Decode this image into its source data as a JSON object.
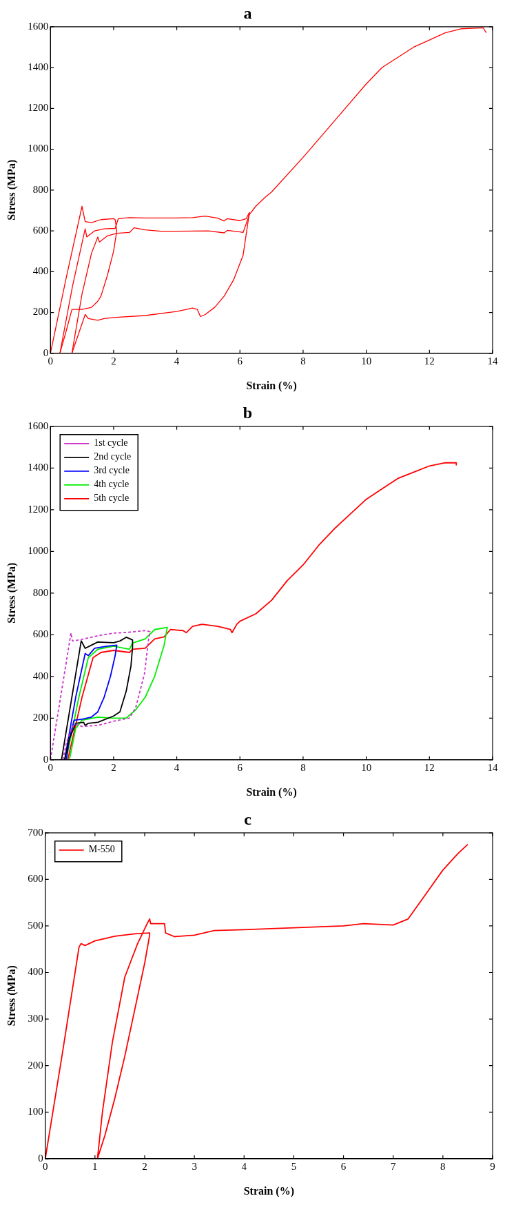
{
  "chart_data": [
    {
      "type": "line",
      "title": "a",
      "xlabel": "Strain (%)",
      "ylabel": "Stress (MPa)",
      "xlim": [
        0,
        14
      ],
      "ylim": [
        0,
        1600
      ],
      "xticks": [
        0,
        2,
        4,
        6,
        8,
        10,
        12,
        14
      ],
      "yticks": [
        0,
        200,
        400,
        600,
        800,
        1000,
        1200,
        1400,
        1600
      ],
      "legend": false,
      "marker": "none",
      "line_style": "solid",
      "series": [
        {
          "color": "#ff0000",
          "x": [
            0,
            0.5,
            1.0,
            1.1,
            1.3,
            1.6,
            2.0,
            2.05,
            2.1,
            2.0,
            1.8,
            1.6,
            1.5,
            1.3,
            1.0,
            0.68,
            0.5,
            0.3
          ],
          "values": [
            0,
            370,
            720,
            645,
            640,
            655,
            660,
            655,
            600,
            500,
            380,
            280,
            255,
            225,
            215,
            215,
            110,
            0
          ]
        },
        {
          "color": "#ff0000",
          "x": [
            0.3,
            0.7,
            1.1,
            1.15,
            1.4,
            1.7,
            2.05,
            2.15,
            2.5,
            3,
            4,
            4.5,
            4.9,
            5.3,
            5.5,
            5.6,
            6.0,
            6.2,
            6.3,
            6.1,
            5.8,
            5.5,
            5.2,
            4.9,
            4.75,
            4.65,
            4.5,
            4,
            3,
            2,
            1.7,
            1.5,
            1.2,
            1.1,
            0.9,
            0.68
          ],
          "values": [
            0,
            330,
            610,
            570,
            600,
            610,
            612,
            660,
            665,
            663,
            663,
            665,
            672,
            662,
            648,
            660,
            650,
            660,
            690,
            480,
            360,
            280,
            225,
            190,
            180,
            215,
            222,
            205,
            185,
            175,
            170,
            162,
            170,
            190,
            100,
            0
          ]
        },
        {
          "color": "#ff0000",
          "x": [
            0.68,
            1.0,
            1.3,
            1.5,
            1.55,
            1.8,
            2.1,
            2.5,
            2.65,
            3,
            3.5,
            4,
            5,
            5.5,
            5.6,
            6.0,
            6.1,
            6.3,
            6.5,
            6.8,
            7,
            8,
            9,
            10,
            10.5,
            11,
            11.5,
            12,
            12.5,
            13,
            13.7,
            13.8
          ],
          "values": [
            0,
            290,
            490,
            570,
            545,
            575,
            588,
            592,
            615,
            605,
            598,
            598,
            600,
            590,
            602,
            595,
            592,
            680,
            720,
            765,
            790,
            960,
            1140,
            1320,
            1400,
            1450,
            1500,
            1535,
            1570,
            1590,
            1595,
            1570
          ]
        }
      ]
    },
    {
      "type": "line",
      "title": "b",
      "xlabel": "Strain (%)",
      "ylabel": "Stress (MPa)",
      "xlim": [
        0,
        14
      ],
      "ylim": [
        0,
        1600
      ],
      "xticks": [
        0,
        2,
        4,
        6,
        8,
        10,
        12,
        14
      ],
      "yticks": [
        0,
        200,
        400,
        600,
        800,
        1000,
        1200,
        1400,
        1600
      ],
      "legend": "top left",
      "marker": "none",
      "series": [
        {
          "name": "1st cycle",
          "color": "#cc33cc",
          "line_style": "dashed",
          "x": [
            0,
            0.65,
            0.7,
            1.0,
            1.5,
            2,
            2.5,
            3.0,
            3.15,
            3.1,
            2.98,
            2.7,
            2.5,
            2.0,
            1.5,
            1.0,
            0.8,
            0.7,
            0.5,
            0.4
          ],
          "values": [
            0,
            608,
            570,
            578,
            595,
            608,
            612,
            620,
            615,
            570,
            414,
            250,
            200,
            185,
            165,
            160,
            170,
            160,
            80,
            0
          ]
        },
        {
          "name": "2nd cycle",
          "color": "#000000",
          "line_style": "solid",
          "x": [
            0.35,
            0.975,
            1.1,
            1.3,
            1.5,
            2.0,
            2.2,
            2.4,
            2.6,
            2.6,
            2.55,
            2.4,
            2.2,
            2.0,
            1.5,
            1.2,
            1.1,
            1.05,
            0.8,
            0.6,
            0.45
          ],
          "values": [
            0,
            571,
            535,
            550,
            565,
            562,
            570,
            588,
            575,
            540,
            450,
            330,
            230,
            210,
            180,
            175,
            165,
            180,
            175,
            100,
            0
          ]
        },
        {
          "name": "3rd cycle",
          "color": "#0000ff",
          "line_style": "solid",
          "x": [
            0.45,
            0.8,
            1.1,
            1.2,
            1.4,
            1.8,
            2.1,
            2.05,
            1.9,
            1.7,
            1.5,
            1.3,
            1.0,
            0.75,
            0.6,
            0.5
          ],
          "values": [
            0,
            300,
            510,
            500,
            535,
            545,
            550,
            500,
            400,
            300,
            230,
            205,
            195,
            190,
            100,
            0
          ]
        },
        {
          "name": "4th cycle",
          "color": "#00ee00",
          "line_style": "solid",
          "x": [
            0.5,
            0.9,
            1.2,
            1.5,
            2.0,
            2.5,
            2.6,
            3.0,
            3.3,
            3.7,
            3.6,
            3.3,
            3.0,
            2.7,
            2.4,
            2.0,
            1.5,
            1.0,
            0.8,
            0.6
          ],
          "values": [
            0,
            300,
            490,
            530,
            545,
            530,
            560,
            580,
            625,
            635,
            550,
            400,
            300,
            240,
            200,
            200,
            205,
            190,
            150,
            0
          ]
        },
        {
          "name": "5th cycle",
          "color": "#ff0000",
          "line_style": "solid",
          "x": [
            0.55,
            1.0,
            1.35,
            1.6,
            2.0,
            2.5,
            2.6,
            3.0,
            3.3,
            3.6,
            3.8,
            4.2,
            4.3,
            4.5,
            4.8,
            5.3,
            5.7,
            5.75,
            5.9,
            6.0,
            6.5,
            7,
            7.5,
            8,
            8.5,
            9,
            9.5,
            10,
            10.5,
            11,
            11.5,
            12,
            12.5,
            12.85,
            12.85
          ],
          "values": [
            0,
            300,
            490,
            515,
            525,
            515,
            530,
            535,
            580,
            590,
            625,
            620,
            610,
            640,
            650,
            640,
            625,
            610,
            650,
            665,
            700,
            765,
            860,
            935,
            1030,
            1110,
            1180,
            1250,
            1300,
            1350,
            1380,
            1410,
            1425,
            1425,
            1415
          ]
        }
      ]
    },
    {
      "type": "line",
      "title": "c",
      "xlabel": "Strain (%)",
      "ylabel": "Stress (MPa)",
      "xlim": [
        0,
        9
      ],
      "ylim": [
        0,
        700
      ],
      "xticks": [
        0,
        1,
        2,
        3,
        4,
        5,
        6,
        7,
        8,
        9
      ],
      "yticks": [
        0,
        100,
        200,
        300,
        400,
        500,
        600,
        700
      ],
      "legend": "top left",
      "marker": "none",
      "line_style": "solid",
      "series": [
        {
          "name": "M-550",
          "color": "#ff0000",
          "x": [
            0,
            0.35,
            0.68,
            0.72,
            0.8,
            1.0,
            1.4,
            1.8,
            2.1,
            2.1,
            2.0,
            1.8,
            1.6,
            1.4,
            1.2,
            1.05,
            1.15,
            1.35,
            1.6,
            1.85,
            2.05,
            2.1,
            2.12,
            2.4,
            2.42,
            2.6,
            3.0,
            3.4,
            4,
            5,
            6,
            6.4,
            7,
            7.3,
            7.6,
            8,
            8.3,
            8.5
          ],
          "values": [
            0,
            230,
            455,
            462,
            458,
            468,
            478,
            483,
            485,
            480,
            420,
            320,
            220,
            130,
            50,
            0,
            100,
            250,
            390,
            460,
            505,
            515,
            505,
            505,
            485,
            477,
            480,
            490,
            492,
            496,
            500,
            505,
            502,
            515,
            560,
            620,
            655,
            675
          ]
        }
      ]
    }
  ]
}
